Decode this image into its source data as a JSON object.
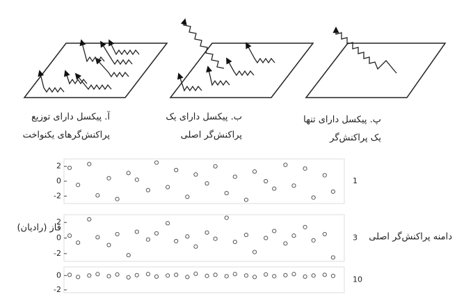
{
  "figure": {
    "captions": [
      [
        "آ. پیکسل دارای توزیع",
        "پراکنش‌گرهای یکنواخت"
      ],
      [
        "ب. پیکسل دارای یک",
        "پراکنش‌گر اصلی"
      ],
      [
        "پ. پیکسل دارای تنها",
        "یک پراکنش‌گر"
      ]
    ],
    "y_axis_label": "فاز (رادیان)",
    "amplitude_axis_label": "دامنه پراکنش‌گر اصلی"
  },
  "chart_data": [
    {
      "type": "scatter",
      "panel_label": 1,
      "color": "#555",
      "xlim": [
        0,
        100
      ],
      "ylim": [
        -3,
        3
      ],
      "yticks": [
        -2,
        0,
        2
      ],
      "x": [
        2,
        5,
        9,
        12,
        16,
        19,
        23,
        26,
        30,
        33,
        37,
        40,
        44,
        47,
        51,
        54,
        58,
        61,
        65,
        68,
        72,
        75,
        79,
        82,
        86,
        89,
        93,
        96
      ],
      "values": [
        1.8,
        -0.5,
        2.3,
        -1.9,
        0.4,
        -2.4,
        1.1,
        0.2,
        -1.2,
        2.5,
        -0.8,
        1.5,
        -2.1,
        0.9,
        -0.3,
        2.0,
        -1.6,
        0.6,
        -2.5,
        1.3,
        0.0,
        -1.0,
        2.2,
        -0.6,
        1.7,
        -2.2,
        0.8,
        -1.4
      ]
    },
    {
      "type": "scatter",
      "panel_label": 3,
      "color": "#555",
      "xlim": [
        0,
        100
      ],
      "ylim": [
        -3,
        3
      ],
      "yticks": [
        -2,
        0,
        2
      ],
      "x": [
        2,
        5,
        9,
        12,
        16,
        19,
        23,
        26,
        30,
        33,
        37,
        40,
        44,
        47,
        51,
        54,
        58,
        61,
        65,
        68,
        72,
        75,
        79,
        82,
        86,
        89,
        93,
        96
      ],
      "values": [
        0.3,
        -0.6,
        2.4,
        0.1,
        -0.9,
        0.5,
        -2.2,
        0.8,
        -0.2,
        0.6,
        1.9,
        -0.4,
        0.2,
        -1.1,
        0.7,
        -0.1,
        2.6,
        -0.5,
        0.4,
        -1.8,
        0.0,
        0.9,
        -0.7,
        0.3,
        1.4,
        -0.3,
        0.5,
        -2.5
      ]
    },
    {
      "type": "scatter",
      "panel_label": 10,
      "color": "#555",
      "xlim": [
        0,
        100
      ],
      "ylim": [
        -2.4,
        1.2
      ],
      "yticks": [
        -2,
        0
      ],
      "x": [
        2,
        5,
        9,
        12,
        16,
        19,
        23,
        26,
        30,
        33,
        37,
        40,
        44,
        47,
        51,
        54,
        58,
        61,
        65,
        68,
        72,
        75,
        79,
        82,
        86,
        89,
        93,
        96
      ],
      "values": [
        0.1,
        -0.2,
        0.0,
        0.2,
        -0.1,
        0.15,
        -0.25,
        0.05,
        0.2,
        -0.15,
        0.0,
        0.1,
        -0.2,
        0.25,
        -0.05,
        0.1,
        -0.1,
        0.2,
        0.0,
        -0.2,
        0.15,
        -0.1,
        0.05,
        0.2,
        -0.15,
        0.0,
        0.1,
        -0.05
      ]
    }
  ]
}
